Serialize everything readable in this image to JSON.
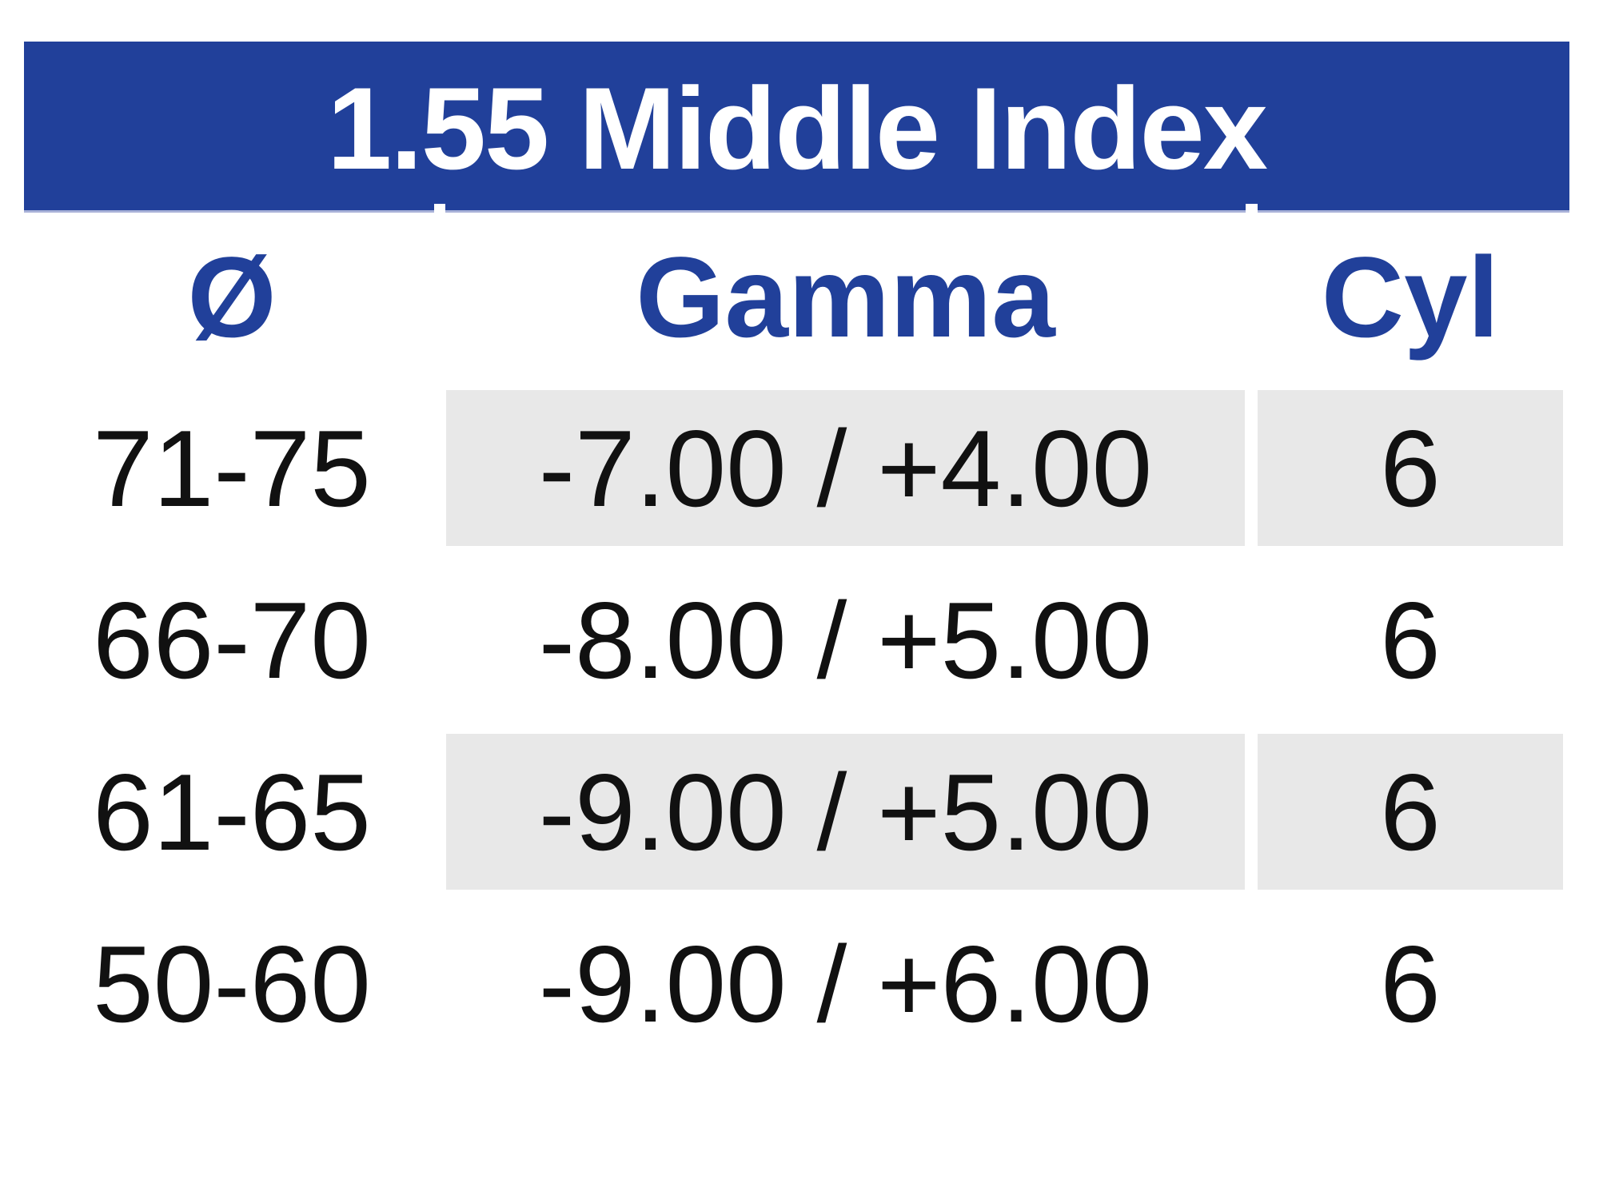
{
  "title": "1.55 Middle Index",
  "table": {
    "headers": {
      "diameter": "Ø",
      "gamma": "Gamma",
      "cyl": "Cyl"
    },
    "rows": [
      {
        "diameter": "71-75",
        "gamma": "-7.00 / +4.00",
        "cyl": "6",
        "shaded": true
      },
      {
        "diameter": "66-70",
        "gamma": "-8.00 / +5.00",
        "cyl": "6",
        "shaded": false
      },
      {
        "diameter": "61-65",
        "gamma": "-9.00 / +5.00",
        "cyl": "6",
        "shaded": true
      },
      {
        "diameter": "50-60",
        "gamma": "-9.00 / +6.00",
        "cyl": "6",
        "shaded": false
      }
    ]
  },
  "colors": {
    "banner_blue": "#21409a",
    "banner_text_white": "#ffffff",
    "banner_edge_lavender": "#a8b1d8",
    "header_text_blue": "#21409a",
    "row_shade_gray": "#e8e8e8",
    "body_text_black": "#111111"
  }
}
